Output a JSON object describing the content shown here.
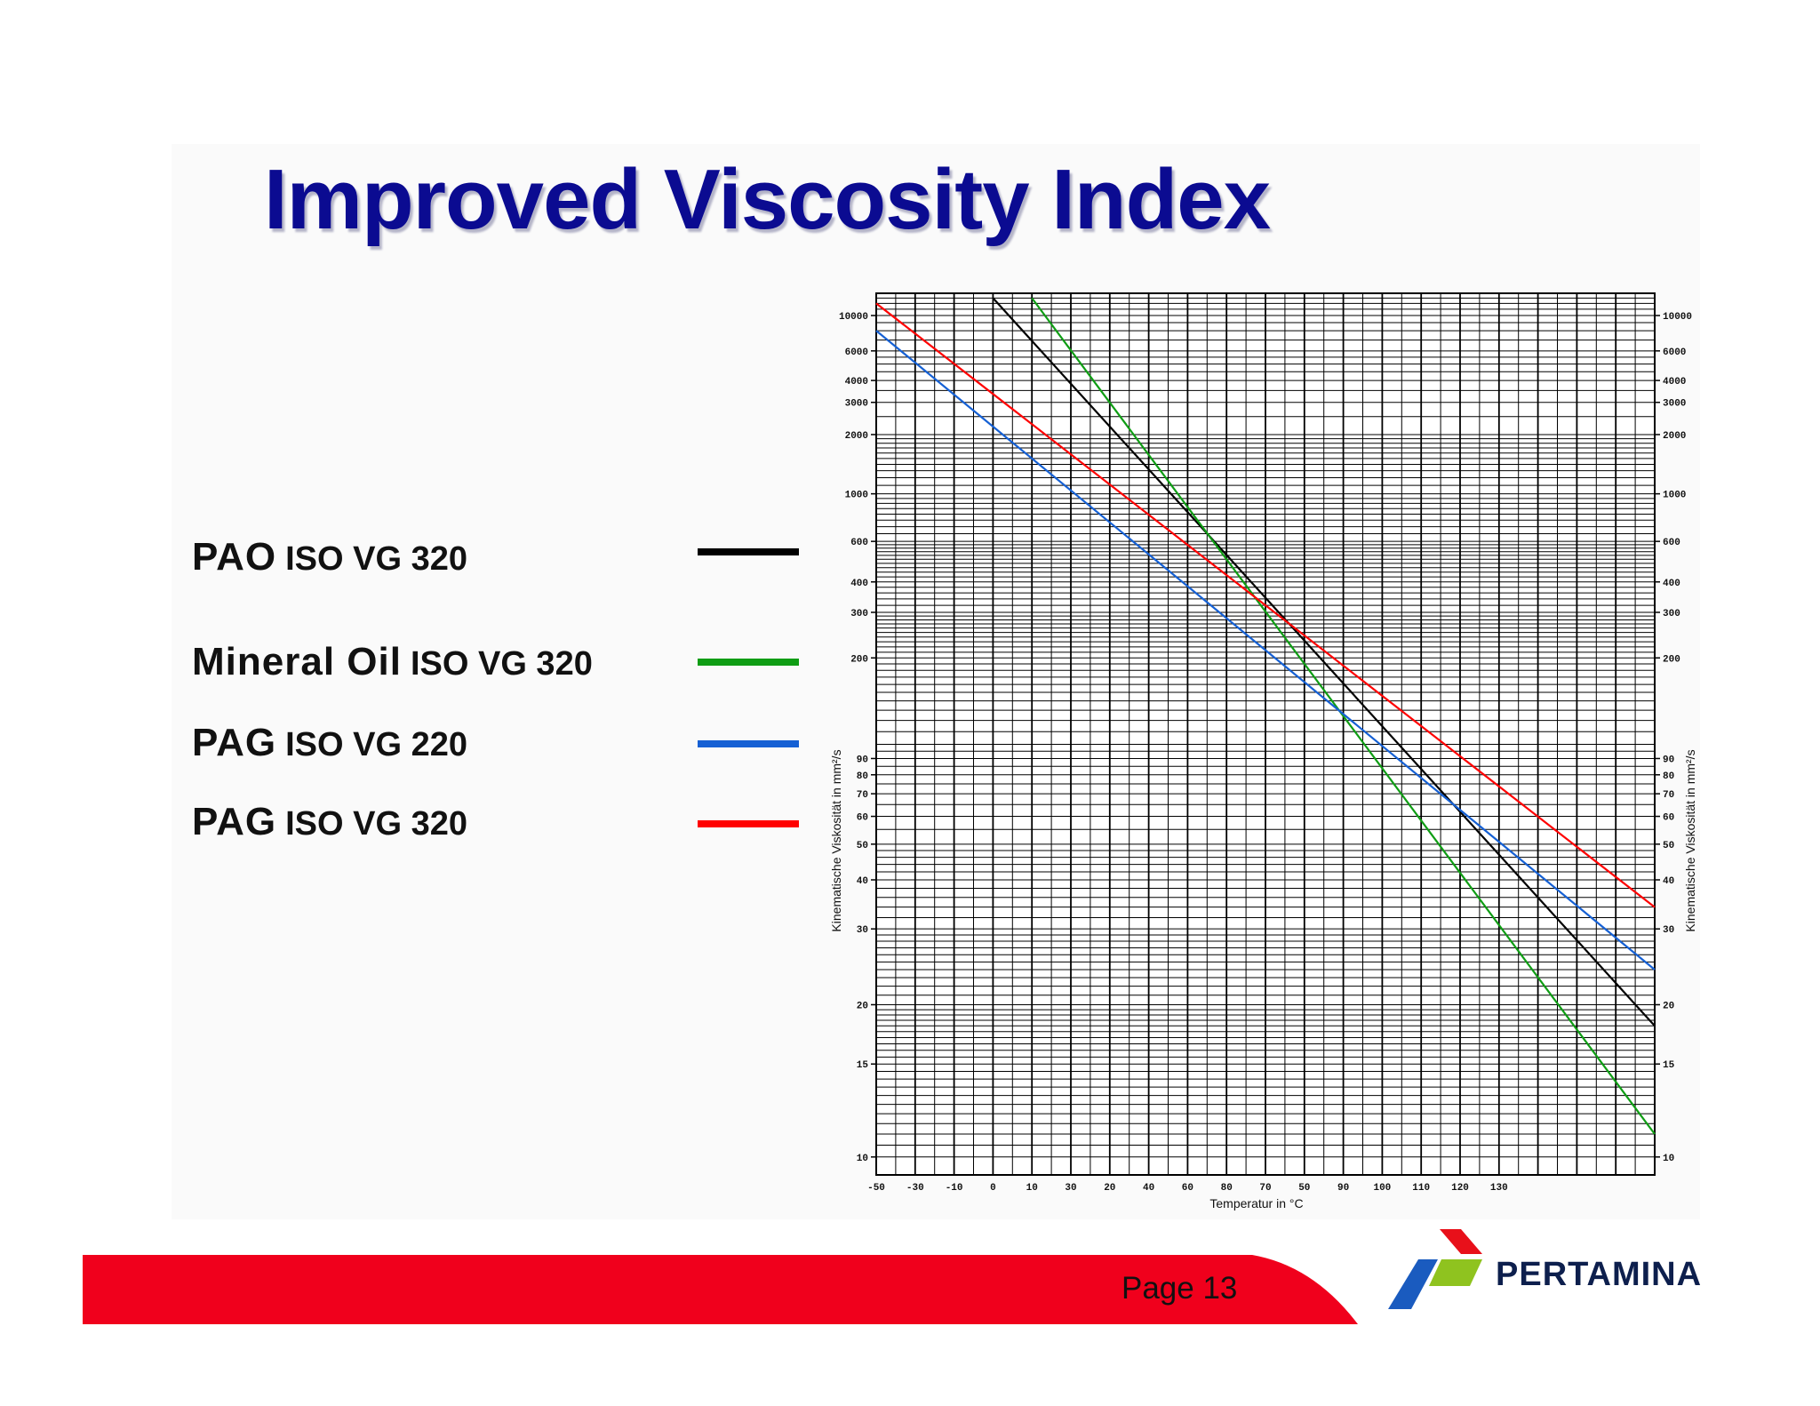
{
  "slide": {
    "title": "Improved Viscosity Index",
    "page_label": "Page 13",
    "brand": "PERTAMINA"
  },
  "legend": [
    {
      "main": "PAO",
      "sub": "ISO VG 320",
      "color": "#000000"
    },
    {
      "main": "Mineral Oil",
      "sub": "ISO VG 320",
      "color": "#0f9d14"
    },
    {
      "main": "PAG",
      "sub": "ISO VG 220",
      "color": "#1560d4"
    },
    {
      "main": "PAG",
      "sub": "ISO VG 320",
      "color": "#ff0000"
    }
  ],
  "colors": {
    "title": "#0b0b91",
    "footer_bar": "#f0001c",
    "logo_red": "#e8101a",
    "logo_green": "#8fc31f",
    "logo_blue": "#1a5bbf",
    "brand_text": "#0d1f4d"
  },
  "chart_data": {
    "type": "line",
    "xlabel": "Temperatur in °C",
    "ylabel": "Kinematische Viskosität in mm²/s",
    "y_scale": "double-log (Ubbelohde–Walther viscosity–temperature grid)",
    "xlim": [
      -50,
      150
    ],
    "ylim": [
      10,
      10000
    ],
    "grid": true,
    "legend_position": "left",
    "x_ticks": [
      "-50",
      "-40",
      "-30",
      "-20",
      "-10",
      "0",
      "10",
      "20",
      "30",
      "40",
      "50",
      "60",
      "70",
      "80",
      "90",
      "100",
      "110",
      "120",
      "130",
      "140",
      "150"
    ],
    "x_tick_labels_shown": [
      "-50",
      "-30",
      "-10",
      "0",
      "10",
      "30",
      "20",
      "40",
      "60",
      "80",
      "70",
      "50",
      "90",
      "100",
      "110",
      "120",
      "130"
    ],
    "y_ticks": [
      10000,
      6000,
      4000,
      3000,
      2000,
      1000,
      600,
      400,
      300,
      200,
      90,
      80,
      70,
      60,
      50,
      40,
      30,
      20,
      15,
      10
    ],
    "y_tick_labels": [
      "10000",
      "6000",
      "4000",
      "3000",
      "2000",
      "1000",
      "600",
      "400",
      "300",
      "200",
      "90",
      "80",
      "70",
      "60",
      "50",
      "40",
      "30",
      "20",
      "15",
      "10"
    ],
    "series": [
      {
        "name": "PAO ISO VG 320",
        "color": "#000000",
        "x": [
          -20,
          150
        ],
        "y": [
          13000,
          18
        ]
      },
      {
        "name": "Mineral Oil ISO VG 320",
        "color": "#0f9d14",
        "x": [
          -10,
          150
        ],
        "y": [
          13000,
          11
        ]
      },
      {
        "name": "PAG ISO VG 220",
        "color": "#1560d4",
        "x": [
          -50,
          150
        ],
        "y": [
          8000,
          24
        ]
      },
      {
        "name": "PAG ISO VG 320",
        "color": "#ff0000",
        "x": [
          -50,
          150
        ],
        "y": [
          12000,
          34
        ]
      }
    ]
  }
}
